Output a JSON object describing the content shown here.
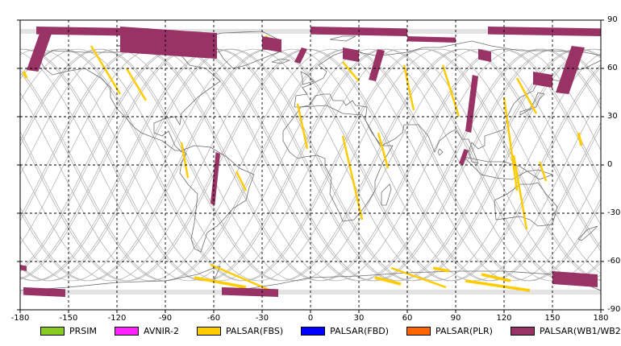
{
  "map": {
    "x_ticks": [
      "-180",
      "-150",
      "-120",
      "-90",
      "-60",
      "-30",
      "0",
      "30",
      "60",
      "90",
      "120",
      "150",
      "180"
    ],
    "y_ticks": [
      "90",
      "60",
      "30",
      "0",
      "-30",
      "-60",
      "-90"
    ],
    "grid": "dashed",
    "colors": {
      "land_outline": "#6e6e6e",
      "orbit_track": "#b4b4b4",
      "grid": "#000000",
      "frame": "#000000"
    }
  },
  "legend": {
    "items": [
      {
        "label": "PRSIM",
        "color": "#88cc22"
      },
      {
        "label": "AVNIR-2",
        "color": "#ff22ff"
      },
      {
        "label": "PALSAR(FBS)",
        "color": "#ffcc00"
      },
      {
        "label": "PALSAR(FBD)",
        "color": "#0000ff"
      },
      {
        "label": "PALSAR(PLR)",
        "color": "#ff6600"
      },
      {
        "label": "PALSAR(WB1/WB2)",
        "color": "#993366"
      }
    ]
  },
  "footprints": {
    "wb": [
      {
        "lon": [
          -176,
          -160
        ],
        "lat": [
          84,
          58
        ]
      },
      {
        "lon": [
          -170,
          -100
        ],
        "lat": [
          86,
          80
        ]
      },
      {
        "lon": [
          -118,
          -58
        ],
        "lat": [
          86,
          66
        ]
      },
      {
        "lon": [
          -30,
          -18
        ],
        "lat": [
          80,
          70
        ]
      },
      {
        "lon": [
          -10,
          -2
        ],
        "lat": [
          73,
          63
        ]
      },
      {
        "lon": [
          0,
          60
        ],
        "lat": [
          86,
          80
        ]
      },
      {
        "lon": [
          20,
          30
        ],
        "lat": [
          73,
          64
        ]
      },
      {
        "lon": [
          36,
          46
        ],
        "lat": [
          72,
          52
        ]
      },
      {
        "lon": [
          60,
          90
        ],
        "lat": [
          80,
          76
        ]
      },
      {
        "lon": [
          104,
          112
        ],
        "lat": [
          72,
          64
        ]
      },
      {
        "lon": [
          96,
          104
        ],
        "lat": [
          56,
          20
        ]
      },
      {
        "lon": [
          92,
          98
        ],
        "lat": [
          10,
          0
        ]
      },
      {
        "lon": [
          152,
          170
        ],
        "lat": [
          74,
          44
        ]
      },
      {
        "lon": [
          138,
          150
        ],
        "lat": [
          58,
          48
        ]
      },
      {
        "lon": [
          110,
          180
        ],
        "lat": [
          86,
          80
        ]
      },
      {
        "lon": [
          -62,
          -56
        ],
        "lat": [
          8,
          -25
        ]
      },
      {
        "lon": [
          -180,
          -176
        ],
        "lat": [
          -62,
          -66
        ]
      },
      {
        "lon": [
          -178,
          -152
        ],
        "lat": [
          -76,
          -82
        ]
      },
      {
        "lon": [
          -55,
          -20
        ],
        "lat": [
          -76,
          -82
        ]
      },
      {
        "lon": [
          150,
          178
        ],
        "lat": [
          -66,
          -76
        ]
      }
    ],
    "fbs": [
      {
        "lon": [
          -136,
          -118
        ],
        "lat": [
          74,
          44
        ]
      },
      {
        "lon": [
          -114,
          -102
        ],
        "lat": [
          60,
          40
        ]
      },
      {
        "lon": [
          -178,
          -176
        ],
        "lat": [
          58,
          54
        ]
      },
      {
        "lon": [
          -80,
          -76
        ],
        "lat": [
          14,
          -8
        ]
      },
      {
        "lon": [
          -46,
          -40
        ],
        "lat": [
          -4,
          -16
        ]
      },
      {
        "lon": [
          -28,
          -20
        ],
        "lat": [
          80,
          72
        ]
      },
      {
        "lon": [
          -8,
          -2
        ],
        "lat": [
          38,
          10
        ]
      },
      {
        "lon": [
          20,
          30
        ],
        "lat": [
          64,
          52
        ]
      },
      {
        "lon": [
          20,
          32
        ],
        "lat": [
          18,
          -34
        ]
      },
      {
        "lon": [
          42,
          48
        ],
        "lat": [
          20,
          -2
        ]
      },
      {
        "lon": [
          58,
          64
        ],
        "lat": [
          62,
          34
        ]
      },
      {
        "lon": [
          82,
          92
        ],
        "lat": [
          62,
          30
        ]
      },
      {
        "lon": [
          120,
          128
        ],
        "lat": [
          42,
          -16
        ]
      },
      {
        "lon": [
          126,
          134
        ],
        "lat": [
          6,
          -40
        ]
      },
      {
        "lon": [
          128,
          140
        ],
        "lat": [
          54,
          32
        ]
      },
      {
        "lon": [
          142,
          146
        ],
        "lat": [
          2,
          -10
        ]
      },
      {
        "lon": [
          166,
          168
        ],
        "lat": [
          20,
          12
        ]
      },
      {
        "lon": [
          -62,
          -20
        ],
        "lat": [
          -62,
          -80
        ]
      },
      {
        "lon": [
          -72,
          -40
        ],
        "lat": [
          -70,
          -76
        ]
      },
      {
        "lon": [
          50,
          84
        ],
        "lat": [
          -64,
          -76
        ]
      },
      {
        "lon": [
          40,
          56
        ],
        "lat": [
          -70,
          -74
        ]
      },
      {
        "lon": [
          96,
          136
        ],
        "lat": [
          -72,
          -78
        ]
      },
      {
        "lon": [
          76,
          86
        ],
        "lat": [
          -64,
          -66
        ]
      },
      {
        "lon": [
          106,
          124
        ],
        "lat": [
          -68,
          -72
        ]
      }
    ]
  }
}
